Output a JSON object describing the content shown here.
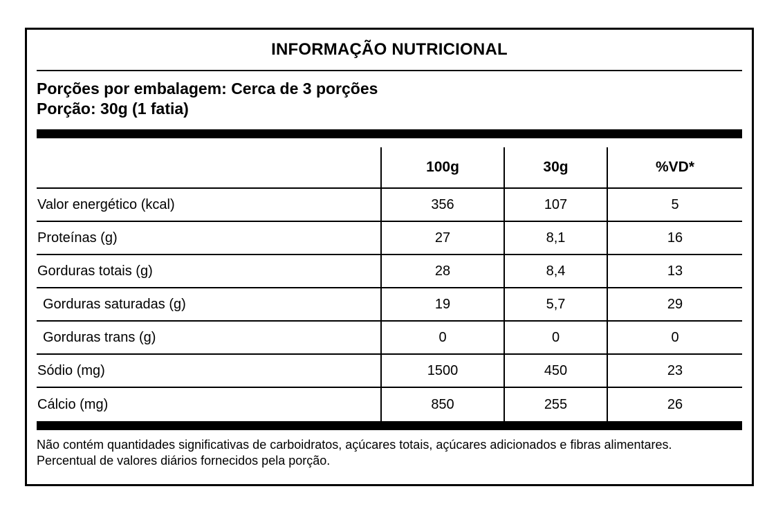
{
  "label": {
    "title": "INFORMAÇÃO NUTRICIONAL",
    "servings": {
      "line1": "Porções por embalagem: Cerca de 3 porções",
      "line2": "Porção: 30g (1 fatia)"
    },
    "columns": {
      "col_100g": "100g",
      "col_30g": "30g",
      "col_vd": "%VD*"
    },
    "rows": [
      {
        "label": "Valor energético (kcal)",
        "per_100g": "356",
        "per_30g": "107",
        "vd": "5"
      },
      {
        "label": "Proteínas (g)",
        "per_100g": "27",
        "per_30g": "8,1",
        "vd": "16"
      },
      {
        "label": "Gorduras totais (g)",
        "per_100g": "28",
        "per_30g": "8,4",
        "vd": "13"
      },
      {
        "label": "Gorduras saturadas (g)",
        "per_100g": "19",
        "per_30g": "5,7",
        "vd": "29"
      },
      {
        "label": "Gorduras trans (g)",
        "per_100g": "0",
        "per_30g": "0",
        "vd": "0"
      },
      {
        "label": "Sódio (mg)",
        "per_100g": "1500",
        "per_30g": "450",
        "vd": "23"
      },
      {
        "label": "Cálcio (mg)",
        "per_100g": "850",
        "per_30g": "255",
        "vd": "26"
      }
    ],
    "footnote": "Não contém quantidades significativas de carboidratos, açúcares totais, açúcares adicionados e fibras alimentares. Percentual de valores diários fornecidos pela porção.",
    "colors": {
      "ink": "#000000",
      "background": "#ffffff"
    }
  }
}
